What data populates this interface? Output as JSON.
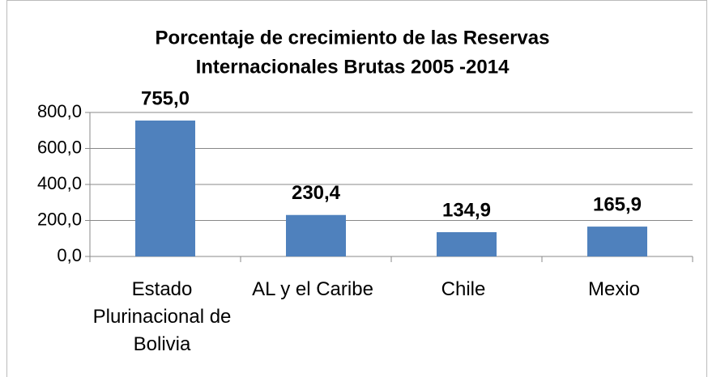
{
  "chart_data": {
    "type": "bar",
    "title": [
      "Porcentaje de crecimiento de las Reservas",
      "Internacionales  Brutas 2005 -2014"
    ],
    "categories": [
      "Estado Plurinacional de Bolivia",
      "AL y el Caribe",
      "Chile",
      "Mexio"
    ],
    "values": [
      755.0,
      230.4,
      134.9,
      165.9
    ],
    "value_labels": [
      "755,0",
      "230,4",
      "134,9",
      "165,9"
    ],
    "color": "#4f81bd",
    "ylim": [
      0,
      800
    ],
    "yticks": [
      {
        "value": 0,
        "label": "0,0"
      },
      {
        "value": 200,
        "label": "200,0"
      },
      {
        "value": 400,
        "label": "400,0"
      },
      {
        "value": 600,
        "label": "600,0"
      },
      {
        "value": 800,
        "label": "800,0"
      }
    ],
    "grid": true
  }
}
